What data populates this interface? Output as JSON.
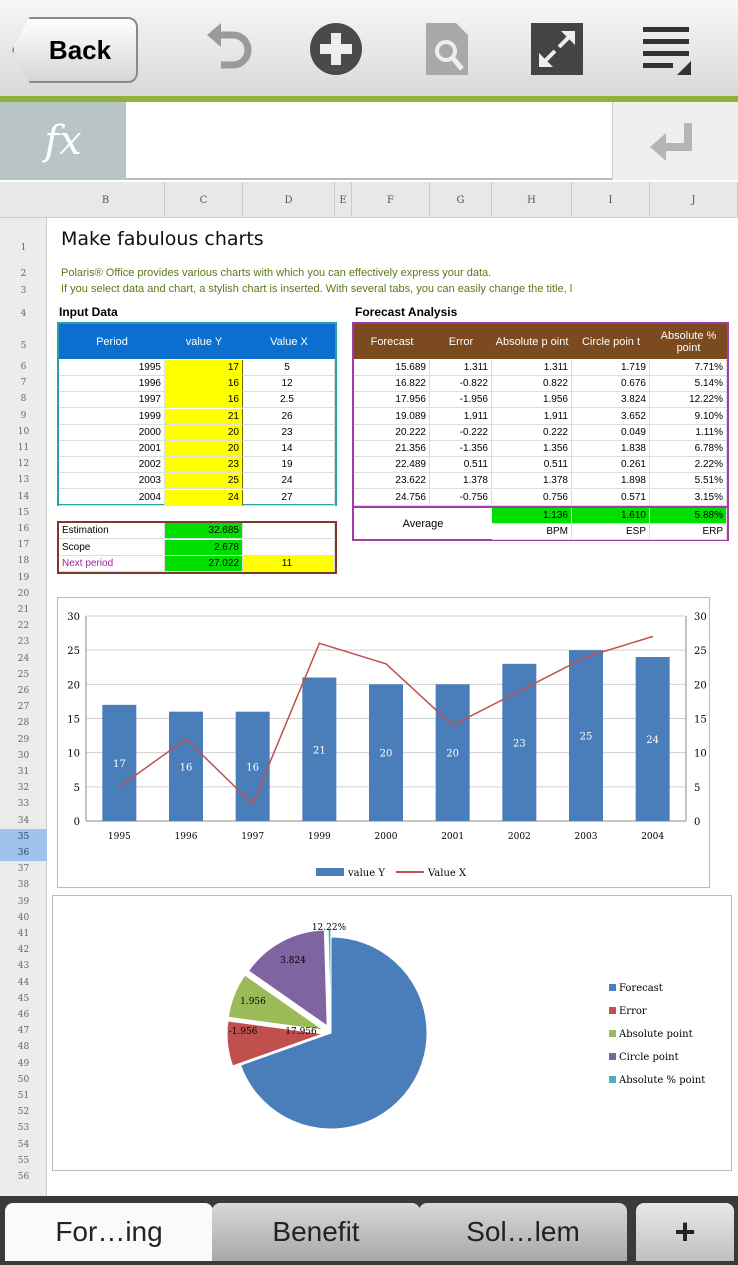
{
  "toolbar": {
    "back_label": "Back",
    "icons": [
      "undo-icon",
      "add-icon",
      "document-search-icon",
      "fullscreen-icon",
      "menu-icon"
    ]
  },
  "formula_bar": {
    "fx_label": "fx",
    "value": ""
  },
  "columns": [
    "B",
    "C",
    "D",
    "E",
    "F",
    "G",
    "H",
    "I",
    "J"
  ],
  "rows": [
    "1",
    "2",
    "3",
    "4",
    "5",
    "6",
    "7",
    "8",
    "9",
    "10",
    "11",
    "12",
    "13",
    "14",
    "15",
    "16",
    "17",
    "18",
    "19",
    "20",
    "21",
    "22",
    "23",
    "24",
    "25",
    "26",
    "27",
    "28",
    "29",
    "30",
    "31",
    "32",
    "33",
    "34",
    "35",
    "36",
    "37",
    "38",
    "39",
    "40",
    "41",
    "42",
    "43",
    "44",
    "45",
    "46",
    "47",
    "48",
    "49",
    "50",
    "51",
    "52",
    "53",
    "54",
    "55",
    "56"
  ],
  "selected_rows": [
    "35",
    "36"
  ],
  "sheet": {
    "title": "Make fabulous charts",
    "line2": "Polaris® Office provides various charts with which you can effectively express your data.",
    "line3": "If you select data and chart, a stylish chart is inserted. With several tabs, you can easily change the title, l",
    "input_title": "Input Data",
    "forecast_title": "Forecast Analysis",
    "input_headers": [
      "Period",
      "value Y",
      "Value X"
    ],
    "input_rows": [
      [
        "1995",
        "17",
        "5"
      ],
      [
        "1996",
        "16",
        "12"
      ],
      [
        "1997",
        "16",
        "2.5"
      ],
      [
        "1999",
        "21",
        "26"
      ],
      [
        "2000",
        "20",
        "23"
      ],
      [
        "2001",
        "20",
        "14"
      ],
      [
        "2002",
        "23",
        "19"
      ],
      [
        "2003",
        "25",
        "24"
      ],
      [
        "2004",
        "24",
        "27"
      ]
    ],
    "estimation": [
      [
        "Estimation",
        "32.685",
        ""
      ],
      [
        "Scope",
        "2.678",
        ""
      ],
      [
        "Next period",
        "27.022",
        "11"
      ]
    ],
    "forecast_headers": [
      "Forecast",
      "Error",
      "Absolute p oint",
      "Circle poin t",
      "Absolute % point"
    ],
    "forecast_rows": [
      [
        "15.689",
        "1.311",
        "1.311",
        "1.719",
        "7.71%"
      ],
      [
        "16.822",
        "-0.822",
        "0.822",
        "0.676",
        "5.14%"
      ],
      [
        "17.956",
        "-1.956",
        "1.956",
        "3.824",
        "12.22%"
      ],
      [
        "19.089",
        "1.911",
        "1.911",
        "3.652",
        "9.10%"
      ],
      [
        "20.222",
        "-0.222",
        "0.222",
        "0.049",
        "1.11%"
      ],
      [
        "21.356",
        "-1.356",
        "1.356",
        "1.838",
        "6.78%"
      ],
      [
        "22.489",
        "0.511",
        "0.511",
        "0.261",
        "2.22%"
      ],
      [
        "23.622",
        "1.378",
        "1.378",
        "1.898",
        "5.51%"
      ],
      [
        "24.756",
        "-0.756",
        "0.756",
        "0.571",
        "3.15%"
      ]
    ],
    "average_label": "Average",
    "average_values": [
      "1.136",
      "1.610",
      "5.88%"
    ],
    "average_names": [
      "BPM",
      "ESP",
      "ERP"
    ]
  },
  "chart_data": [
    {
      "type": "bar",
      "categories": [
        "1995",
        "1996",
        "1997",
        "1999",
        "2000",
        "2001",
        "2002",
        "2003",
        "2004"
      ],
      "series": [
        {
          "name": "value Y",
          "type": "bar",
          "color": "#4a7ebb",
          "values": [
            17,
            16,
            16,
            21,
            20,
            20,
            23,
            25,
            24
          ],
          "data_labels": true
        },
        {
          "name": "Value X",
          "type": "line",
          "color": "#c0504d",
          "values": [
            5,
            12,
            2.5,
            26,
            23,
            14,
            19,
            24,
            27
          ]
        }
      ],
      "ylim": [
        0,
        30
      ],
      "yticks": [
        0,
        5,
        10,
        15,
        20,
        25,
        30
      ],
      "secondary_ylim": [
        0,
        30
      ],
      "legend": "bottom",
      "grid": true
    },
    {
      "type": "pie",
      "labels": [
        "Forecast",
        "Error",
        "Absolute point",
        "Circle point",
        "Absolute % point"
      ],
      "values": [
        17.956,
        1.956,
        1.956,
        3.824,
        0.1222
      ],
      "data_labels": [
        "17.956",
        "-1.956",
        "1.956",
        "3.824",
        "12.22%"
      ],
      "colors": [
        "#4a7ebb",
        "#c0504d",
        "#9bbb59",
        "#8064a2",
        "#4bacc6"
      ],
      "legend": "right"
    }
  ],
  "tabs": [
    {
      "label": "For…ing",
      "active": true
    },
    {
      "label": "Benefit",
      "active": false
    },
    {
      "label": "Sol…lem",
      "active": false
    }
  ],
  "add_tab_label": "+"
}
